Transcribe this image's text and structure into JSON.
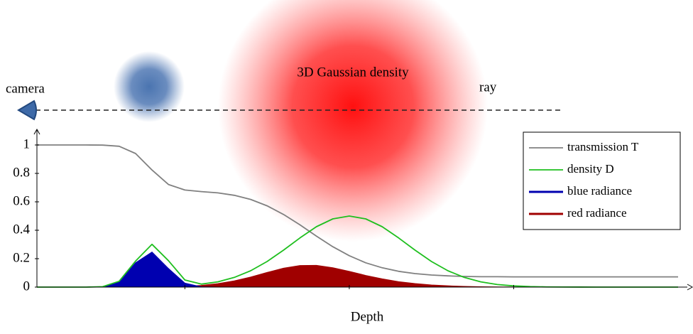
{
  "chart_data": {
    "type": "line",
    "annotations": [
      "camera",
      "3D Gaussian density",
      "ray"
    ],
    "xlabel": "Depth",
    "x": [
      0,
      0.1,
      0.2,
      0.3,
      0.4,
      0.5,
      0.6,
      0.7,
      0.8,
      0.9,
      1.0,
      1.1,
      1.2,
      1.3,
      1.4,
      1.5,
      1.6,
      1.7,
      1.8,
      1.9,
      2.0,
      2.1,
      2.2,
      2.3,
      2.4,
      2.5,
      2.6,
      2.7,
      2.8,
      2.9,
      3.0,
      3.1,
      3.2,
      3.3,
      3.4,
      3.5,
      3.6,
      3.7,
      3.8,
      3.9
    ],
    "series": [
      {
        "name": "transmission T",
        "color": "#808080",
        "fill": false,
        "values": [
          1,
          1,
          1,
          1,
          0.999,
          0.991,
          0.94,
          0.824,
          0.722,
          0.683,
          0.672,
          0.663,
          0.646,
          0.617,
          0.572,
          0.511,
          0.438,
          0.359,
          0.284,
          0.221,
          0.171,
          0.136,
          0.111,
          0.095,
          0.085,
          0.079,
          0.075,
          0.073,
          0.073,
          0.072,
          0.072,
          0.072,
          0.072,
          0.072,
          0.072,
          0.072,
          0.072,
          0.072,
          0.072,
          0.072
        ]
      },
      {
        "name": "density D",
        "color": "#1fbf1f",
        "fill": false,
        "values": [
          0,
          0,
          0,
          0,
          0.003,
          0.041,
          0.183,
          0.301,
          0.186,
          0.05,
          0.021,
          0.037,
          0.068,
          0.115,
          0.18,
          0.26,
          0.346,
          0.425,
          0.48,
          0.5,
          0.48,
          0.425,
          0.346,
          0.26,
          0.18,
          0.115,
          0.068,
          0.037,
          0.018,
          0.0085,
          0.0036,
          0.0014,
          0.0005,
          0.0002,
          0,
          0,
          0,
          0,
          0,
          0
        ]
      },
      {
        "name": "blue radiance",
        "color": "#0000b0",
        "fill": true,
        "values": [
          0,
          0,
          0,
          0,
          0.003,
          0.041,
          0.171,
          0.247,
          0.131,
          0.028,
          0.002,
          0,
          0,
          0,
          0,
          0,
          0,
          0,
          0,
          0,
          0,
          0,
          0,
          0,
          0,
          0,
          0,
          0,
          0,
          0,
          0,
          0,
          0,
          0,
          0,
          0,
          0,
          0,
          0,
          0
        ]
      },
      {
        "name": "red radiance",
        "color": "#a00000",
        "fill": true,
        "values": [
          0,
          0,
          0,
          0,
          0,
          0.0002,
          0.0005,
          0.0012,
          0.0026,
          0.0058,
          0.0121,
          0.0245,
          0.0439,
          0.071,
          0.103,
          0.133,
          0.152,
          0.153,
          0.136,
          0.111,
          0.082,
          0.058,
          0.038,
          0.025,
          0.0153,
          0.0091,
          0.0051,
          0.0027,
          0.0013,
          0.0006,
          0.0003,
          0.0001,
          0,
          0,
          0,
          0,
          0,
          0,
          0,
          0
        ]
      }
    ],
    "xlim": [
      0,
      3.9
    ],
    "xticks": [
      0.9,
      1.9,
      2.9
    ],
    "ylim": [
      0,
      1.1
    ],
    "yticks": [
      0,
      0.2,
      0.4,
      0.6,
      0.8,
      1
    ],
    "legend": "upper right"
  }
}
